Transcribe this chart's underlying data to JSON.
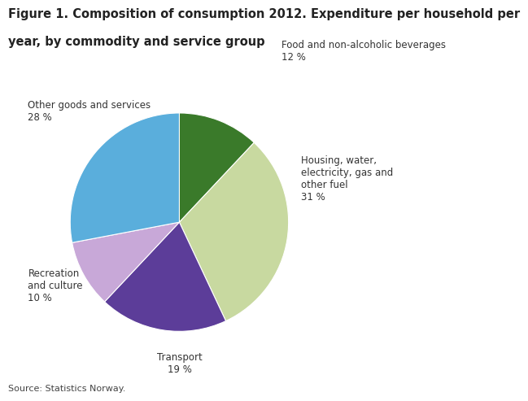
{
  "title_line1": "Figure 1. Composition of consumption 2012. Expenditure per household per",
  "title_line2": "year, by commodity and service group",
  "slices": [
    {
      "label": "Food and non-alcoholic beverages",
      "pct_label": "12 %",
      "value": 12,
      "color": "#3a7a2a"
    },
    {
      "label": "Housing, water,\nelectricity, gas and\nother fuel",
      "pct_label": "31 %",
      "value": 31,
      "color": "#c8d9a0"
    },
    {
      "label": "Transport",
      "pct_label": "19 %",
      "value": 19,
      "color": "#5c3d99"
    },
    {
      "label": "Recreation\nand culture",
      "pct_label": "10 %",
      "value": 10,
      "color": "#c8a8d8"
    },
    {
      "label": "Other goods and services",
      "pct_label": "28 %",
      "value": 28,
      "color": "#5aaedc"
    }
  ],
  "startangle": 90,
  "source": "Source: Statistics Norway.",
  "title_fontsize": 10.5,
  "label_fontsize": 8.5,
  "source_fontsize": 8,
  "background_color": "#ffffff"
}
